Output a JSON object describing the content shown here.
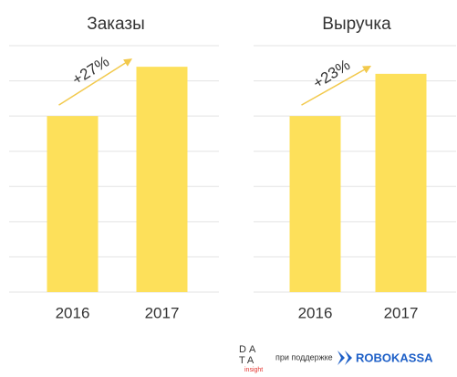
{
  "chart_data": [
    {
      "type": "bar",
      "title": "Заказы",
      "categories": [
        "2016",
        "2017"
      ],
      "values": [
        5.0,
        6.4
      ],
      "color": "#fde05a",
      "ylim": [
        0,
        7
      ],
      "yticks": [
        0,
        1,
        2,
        3,
        4,
        5,
        6,
        7
      ],
      "grid": true,
      "tick_labels": false,
      "annotation": "+27%"
    },
    {
      "type": "bar",
      "title": "Выручка",
      "categories": [
        "2016",
        "2017"
      ],
      "values": [
        5.0,
        6.2
      ],
      "color": "#fde05a",
      "ylim": [
        0,
        7
      ],
      "yticks": [
        0,
        1,
        2,
        3,
        4,
        5,
        6,
        7
      ],
      "grid": true,
      "tick_labels": false,
      "annotation": "+23%"
    }
  ],
  "footer": {
    "logo_top": "DA",
    "logo_bottom": "TA",
    "logo_sub": "insight",
    "support": "при поддержке",
    "partner": "ROBOKASSA"
  }
}
